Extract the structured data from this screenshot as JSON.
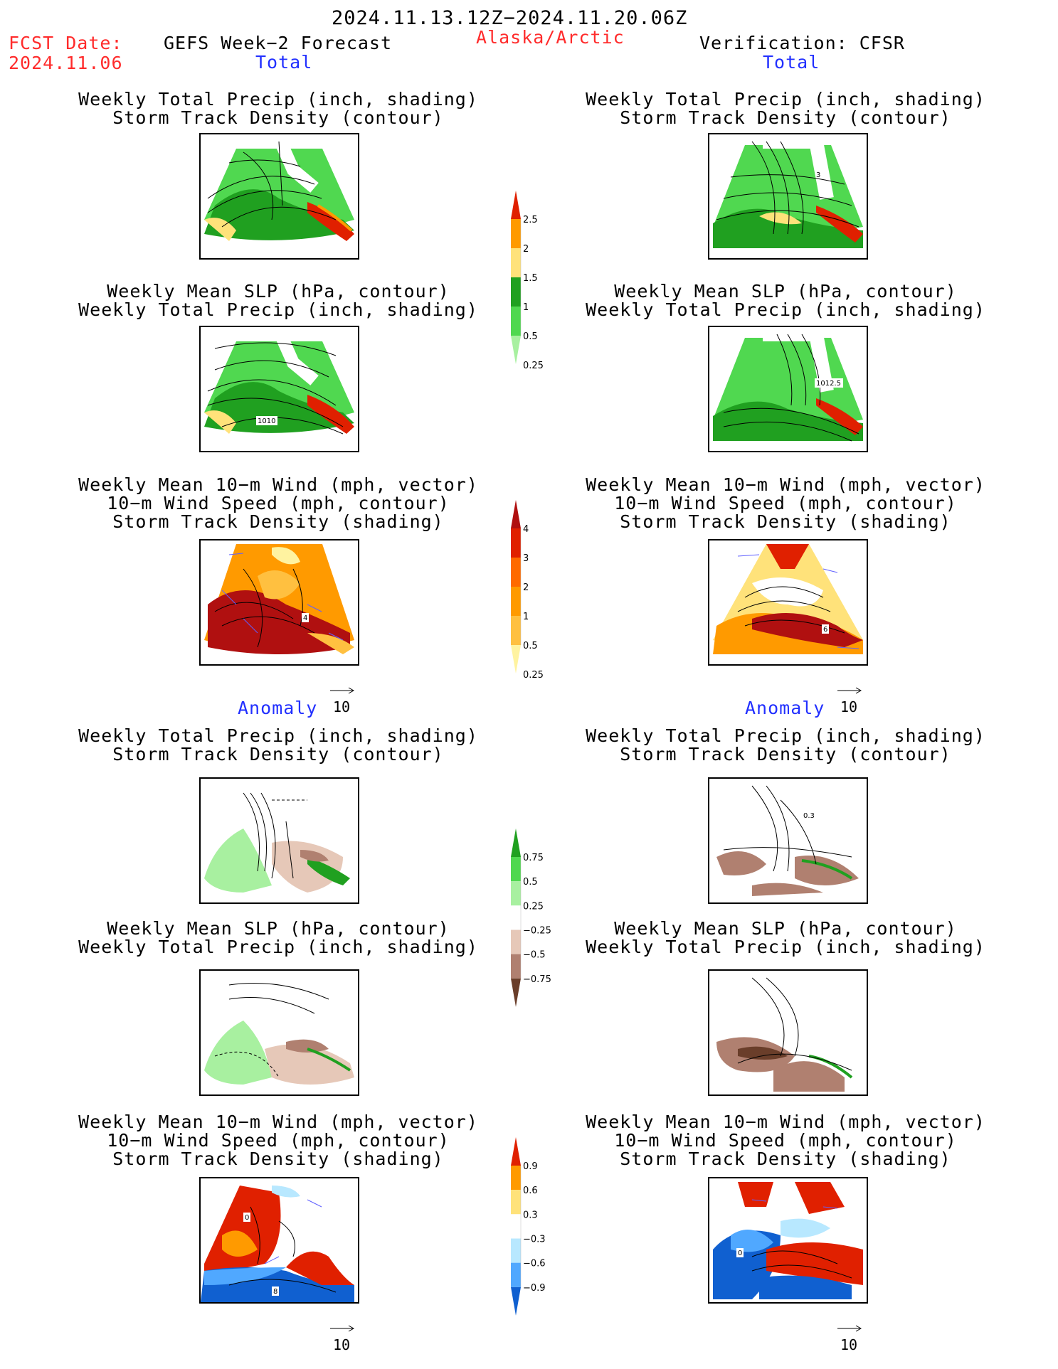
{
  "header": {
    "period": "2024.11.13.12Z−2024.11.20.06Z",
    "fcst_label": "FCST Date:",
    "fcst_date": "2024.11.06",
    "forecast": "GEFS Week−2 Forecast",
    "region": "Alaska/Arctic",
    "verification": "Verification: CFSR"
  },
  "sections": {
    "total": "Total",
    "anomaly": "Anomaly"
  },
  "titles": {
    "precip_storm": [
      "Weekly Total Precip (inch, shading)",
      "Storm Track Density (contour)"
    ],
    "slp_precip": [
      "Weekly Mean SLP (hPa, contour)",
      "Weekly Total Precip (inch, shading)"
    ],
    "wind_storm": [
      "Weekly Mean 10−m Wind (mph, vector)",
      "10−m Wind Speed (mph, contour)",
      "Storm Track Density (shading)"
    ]
  },
  "vector_ref": "10",
  "map_labels": {
    "l_precip": "",
    "r_precip": "3",
    "l_slp": "1010",
    "r_slp": "1012.5",
    "l_wind": "4",
    "r_wind": "6",
    "r_precip_anom": "0.3",
    "l_wind_anom_a": "0",
    "l_wind_anom_b": "8",
    "r_wind_anom": "0"
  },
  "colorbars": {
    "precip_total": {
      "labels": [
        "2.5",
        "2",
        "1.5",
        "1",
        "0.5",
        "0.25"
      ],
      "colors": [
        "#e02000",
        "#ff9a00",
        "#ffe27a",
        "#20a020",
        "#50d850",
        "#a8f0a0"
      ]
    },
    "storm_total": {
      "labels": [
        "4",
        "3",
        "2",
        "1",
        "0.5",
        "0.25"
      ],
      "colors": [
        "#b01010",
        "#e02000",
        "#ff6a00",
        "#ff9a00",
        "#ffc040",
        "#fff3a0"
      ]
    },
    "precip_anom": {
      "labels": [
        "0.75",
        "0.5",
        "0.25",
        "−0.25",
        "−0.5",
        "−0.75"
      ],
      "colors": [
        "#20a020",
        "#50d850",
        "#a8f0a0",
        "#ffffff",
        "#e6c8b8",
        "#b08070",
        "#6a3e2a"
      ]
    },
    "storm_anom": {
      "labels": [
        "0.9",
        "0.6",
        "0.3",
        "−0.3",
        "−0.6",
        "−0.9"
      ],
      "colors": [
        "#e02000",
        "#ff9a00",
        "#ffe27a",
        "#ffffff",
        "#b8e8ff",
        "#50a8ff",
        "#1060d0"
      ]
    }
  }
}
